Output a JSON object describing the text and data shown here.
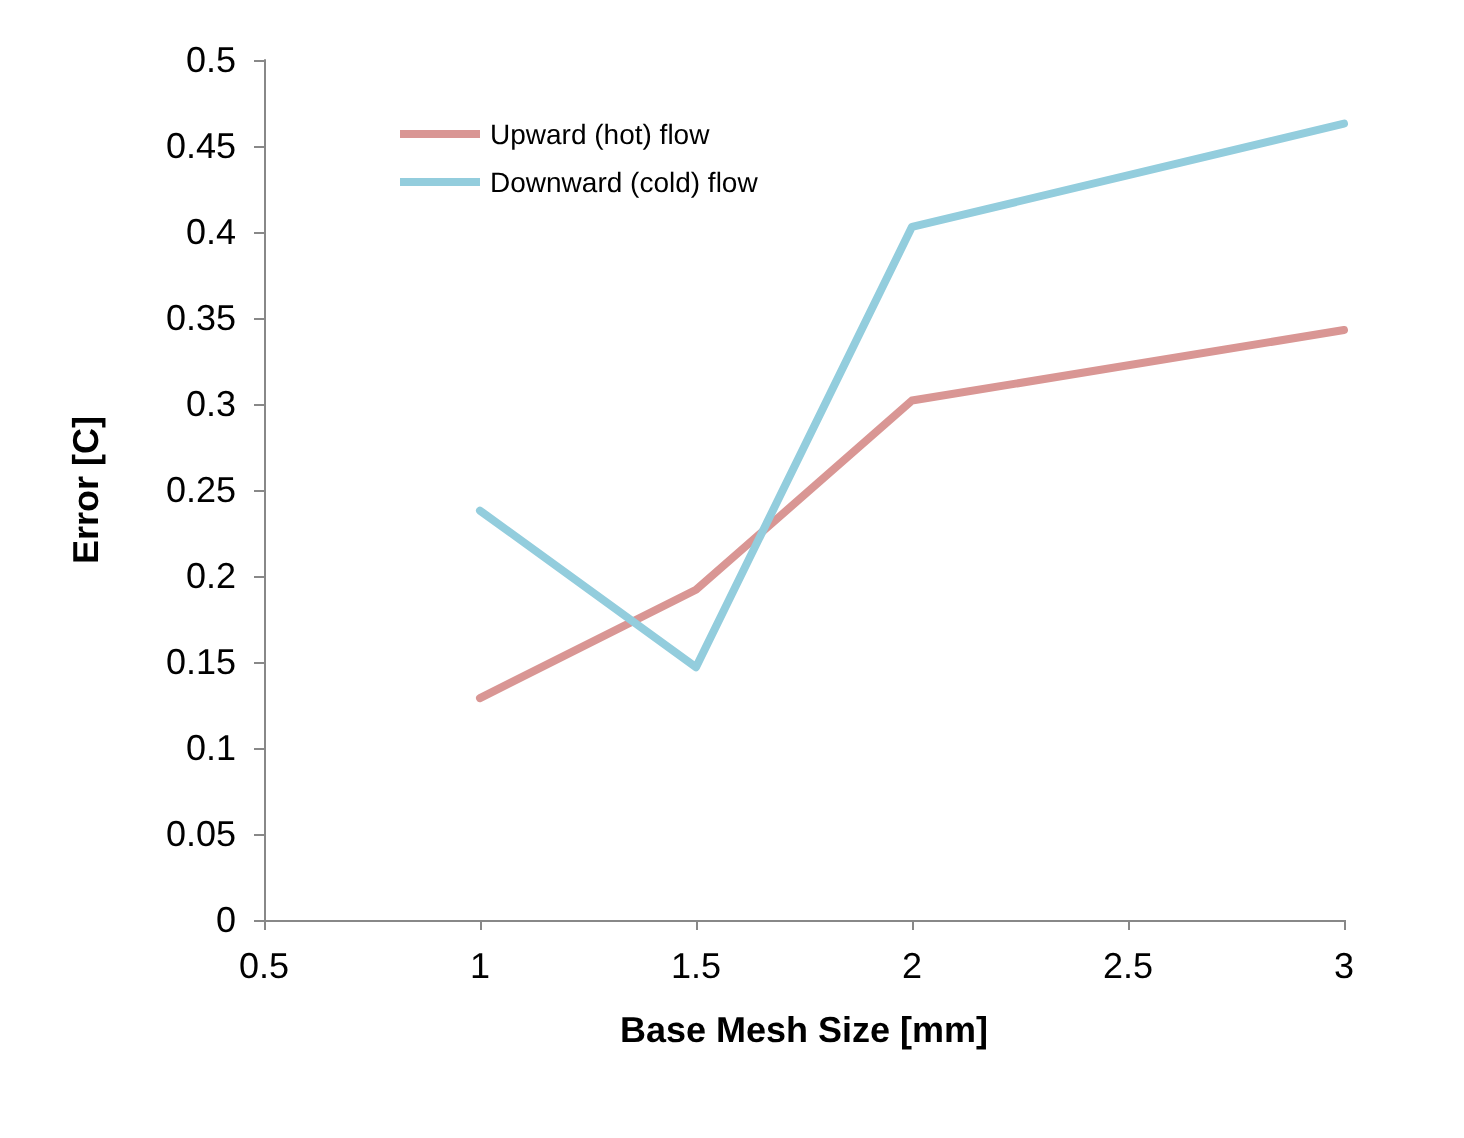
{
  "chart_data": {
    "type": "line",
    "xlabel": "Base Mesh Size [mm]",
    "ylabel": "Error [C]",
    "x": [
      1,
      1.5,
      2,
      3
    ],
    "series": [
      {
        "name": "Upward (hot) flow",
        "color": "#d99694",
        "values": [
          0.129,
          0.192,
          0.302,
          0.343
        ]
      },
      {
        "name": "Downward (cold) flow",
        "color": "#93cddd",
        "values": [
          0.238,
          0.147,
          0.403,
          0.463
        ]
      }
    ],
    "xlim": [
      0.5,
      3
    ],
    "xticks": [
      0.5,
      1,
      1.5,
      2,
      2.5,
      3
    ],
    "ylim": [
      0,
      0.5
    ],
    "yticks": [
      0,
      0.05,
      0.1,
      0.15,
      0.2,
      0.25,
      0.3,
      0.35,
      0.4,
      0.45,
      0.5
    ],
    "grid": false,
    "legend": "top left",
    "marker": "none",
    "line_style": "solid"
  }
}
